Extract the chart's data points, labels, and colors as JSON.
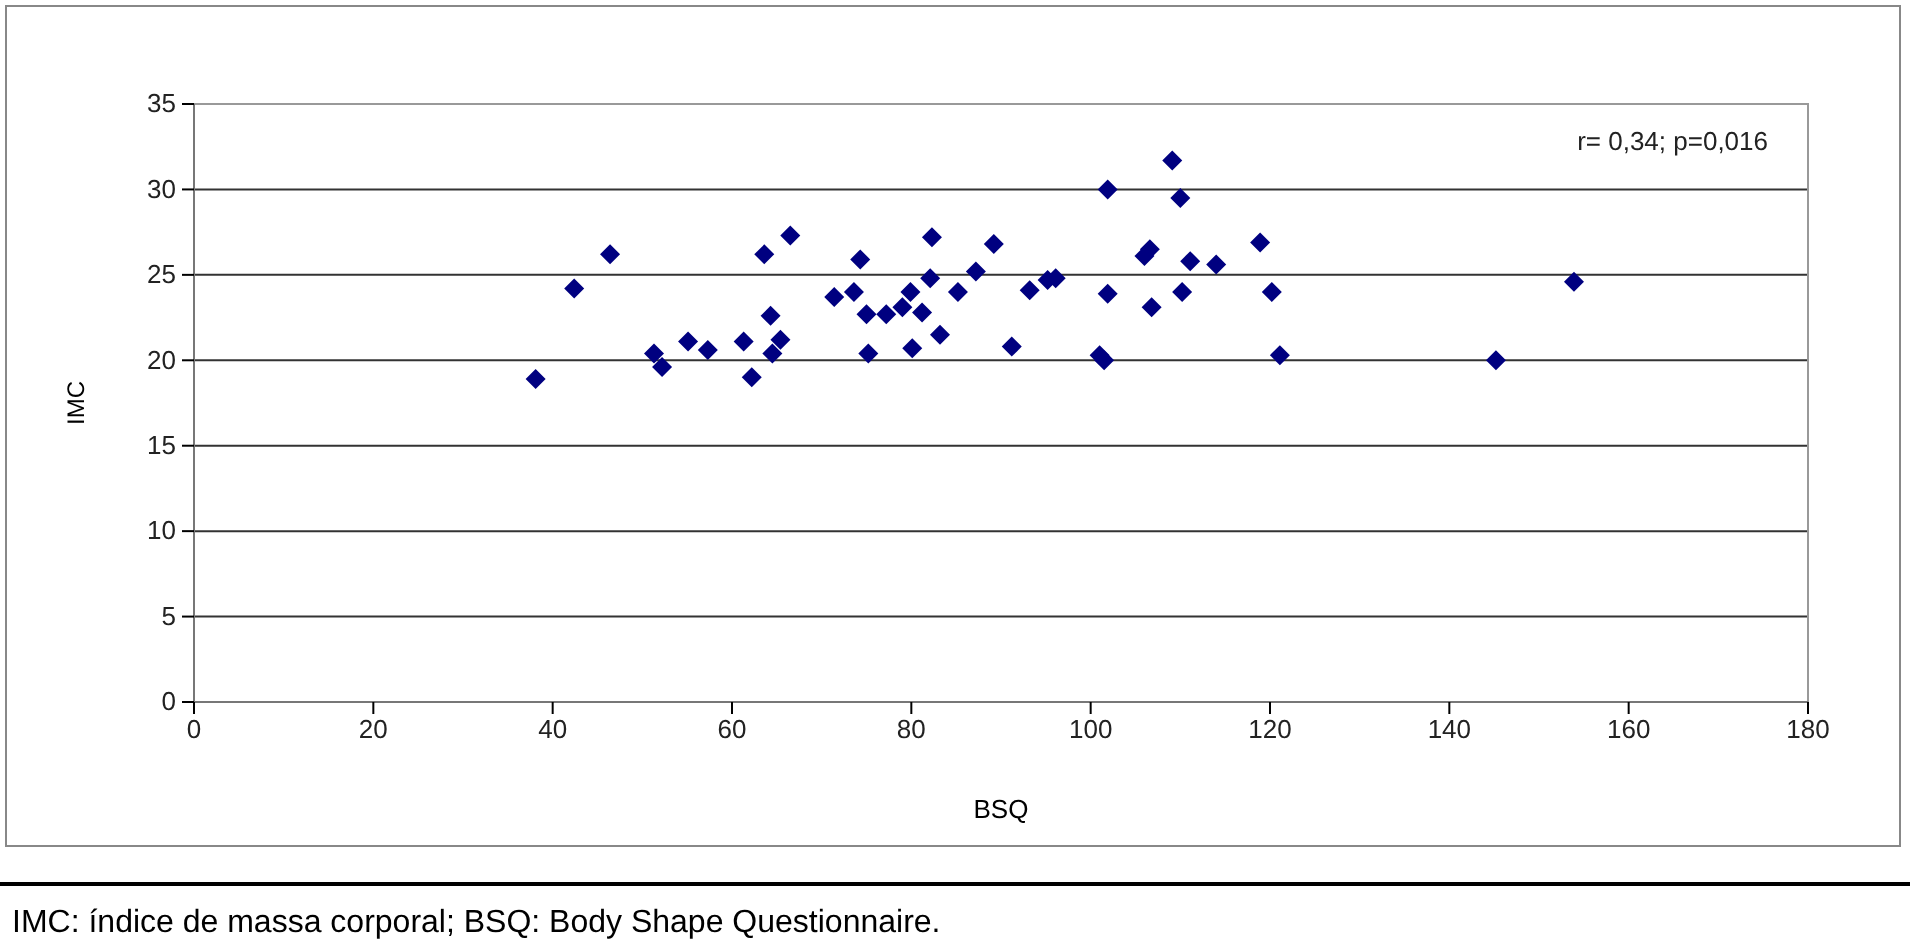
{
  "chart_data": {
    "type": "scatter",
    "xlabel": "BSQ",
    "ylabel": "IMC",
    "xlim": [
      0,
      180
    ],
    "xticks": [
      0,
      20,
      40,
      60,
      80,
      100,
      120,
      140,
      160,
      180
    ],
    "ylim": [
      0,
      35
    ],
    "yticks": [
      0,
      5,
      10,
      15,
      20,
      25,
      30,
      35
    ],
    "grid": "y",
    "marker": "diamond",
    "annotations": [
      "r= 0,34;  p=0,016",
      "IMC: índice de massa corporal; BSQ: Body Shape Questionnaire."
    ],
    "series": [
      {
        "color": "#000080",
        "x": [
          38.1,
          42.4,
          46.4,
          51.3,
          52.2,
          55.1,
          57.3,
          61.3,
          62.2,
          63.6,
          64.3,
          64.5,
          65.4,
          66.5,
          71.4,
          73.6,
          74.3,
          75.0,
          75.2,
          77.2,
          79.0,
          79.9,
          80.1,
          81.2,
          82.1,
          82.3,
          83.2,
          85.2,
          87.2,
          89.2,
          91.2,
          93.2,
          95.2,
          96.1,
          101.0,
          101.5,
          101.9,
          101.9,
          106.0,
          106.6,
          106.8,
          109.1,
          110.0,
          110.2,
          111.1,
          114.0,
          118.9,
          120.2,
          121.1,
          145.2,
          153.9
        ],
        "values": [
          18.9,
          24.2,
          26.2,
          20.4,
          19.6,
          21.1,
          20.6,
          21.1,
          19.0,
          26.2,
          22.6,
          20.4,
          21.2,
          27.3,
          23.7,
          24.0,
          25.9,
          22.7,
          20.4,
          22.7,
          23.1,
          24.0,
          20.7,
          22.8,
          24.8,
          27.2,
          21.5,
          24.0,
          25.2,
          26.8,
          20.8,
          24.1,
          24.7,
          24.8,
          20.3,
          20.0,
          23.9,
          30.0,
          26.1,
          26.5,
          23.1,
          31.7,
          29.5,
          24.0,
          25.8,
          25.6,
          26.9,
          24.0,
          20.3,
          20.0,
          24.6
        ]
      }
    ]
  }
}
